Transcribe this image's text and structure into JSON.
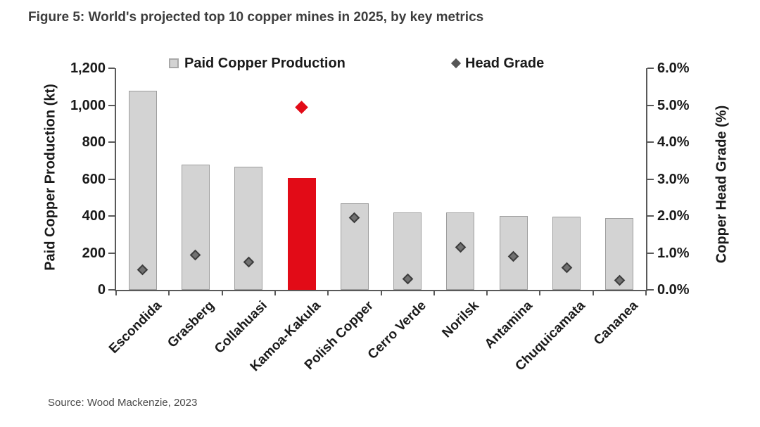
{
  "title": "Figure 5: World's projected top 10 copper mines in 2025, by key metrics",
  "source": "Source: Wood Mackenzie, 2023",
  "legend": {
    "production_label": "Paid Copper Production",
    "head_grade_label": "Head Grade"
  },
  "axes": {
    "left_label": "Paid Copper Production (kt)",
    "right_label": "Copper Head Grade (%)",
    "left_tick_labels": [
      "0",
      "200",
      "400",
      "600",
      "800",
      "1,000",
      "1,200"
    ],
    "right_tick_labels": [
      "0.0%",
      "1.0%",
      "2.0%",
      "3.0%",
      "4.0%",
      "5.0%",
      "6.0%"
    ]
  },
  "colors": {
    "bar_fill": "#d3d3d3",
    "bar_border": "#9e9e9e",
    "highlight_red": "#e20b17",
    "diamond_fill": "#717171",
    "diamond_border": "#3d3d3d",
    "axis_line": "#595959",
    "text": "#1a1a1a"
  },
  "chart_data": {
    "type": "bar",
    "title": "Figure 5: World's projected top 10 copper mines in 2025, by key metrics",
    "categories": [
      "Escondida",
      "Grasberg",
      "Collahuasi",
      "Kamoa-Kakula",
      "Polish Copper",
      "Cerro Verde",
      "Norilsk",
      "Antamina",
      "Chuquicamata",
      "Cananea"
    ],
    "series": [
      {
        "name": "Paid Copper Production",
        "type": "bar",
        "axis": "left",
        "unit": "kt",
        "values": [
          1080,
          680,
          665,
          605,
          470,
          420,
          420,
          400,
          395,
          390
        ]
      },
      {
        "name": "Head Grade",
        "type": "scatter",
        "axis": "right",
        "unit": "%",
        "values": [
          0.55,
          0.95,
          0.75,
          4.95,
          1.95,
          0.3,
          1.15,
          0.9,
          0.6,
          0.25
        ]
      }
    ],
    "highlight_category": "Kamoa-Kakula",
    "left_axis": {
      "label": "Paid Copper Production (kt)",
      "min": 0,
      "max": 1200,
      "step": 200
    },
    "right_axis": {
      "label": "Copper Head Grade (%)",
      "min": 0,
      "max": 6,
      "step": 1
    },
    "legend_position": "top",
    "grid": false,
    "source": "Source: Wood Mackenzie, 2023"
  }
}
